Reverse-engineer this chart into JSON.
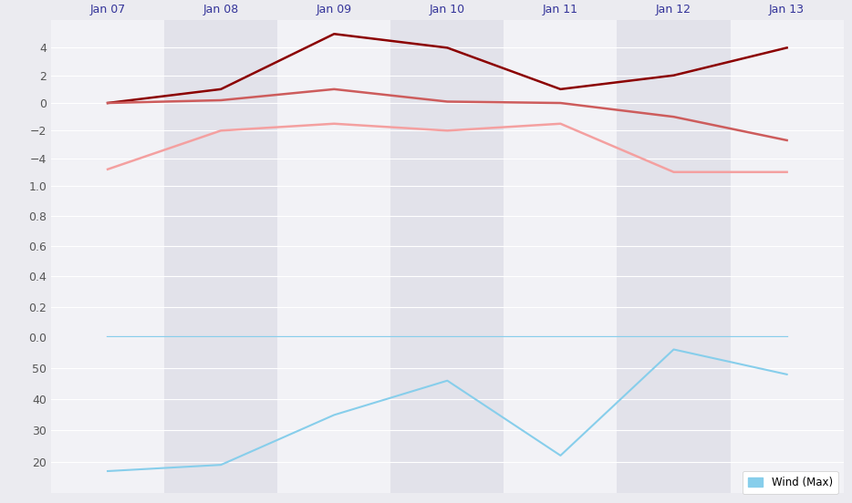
{
  "x_labels": [
    "Jan 07",
    "Jan 08",
    "Jan 09",
    "Jan 10",
    "Jan 11",
    "Jan 12",
    "Jan 13"
  ],
  "x_positions": [
    0,
    1,
    2,
    3,
    4,
    5,
    6
  ],
  "temp_max": [
    0,
    1,
    5,
    4,
    1,
    2,
    4
  ],
  "temp_avg": [
    0,
    0.2,
    1,
    0.1,
    0,
    -1,
    -2.7
  ],
  "temp_min": [
    -4.8,
    -2,
    -1.5,
    -2,
    -1.5,
    -5,
    -5
  ],
  "precip": [
    0,
    0,
    0,
    0,
    0,
    0,
    0
  ],
  "precip_avg": [
    0,
    0,
    0,
    0,
    0,
    0,
    0
  ],
  "wind_max": [
    17,
    19,
    35,
    46,
    22,
    56,
    48
  ],
  "color_temp_max": "#8B0000",
  "color_temp_avg": "#CD5C5C",
  "color_temp_min": "#F4A0A0",
  "color_precip": "#1E90FF",
  "color_precip_avg": "#87CEEB",
  "color_wind_max": "#87CEEB",
  "temp_ylim": [
    -6,
    6
  ],
  "temp_yticks": [
    -4,
    -2,
    0,
    2,
    4
  ],
  "precip_ylim": [
    0,
    1
  ],
  "precip_yticks": [
    0,
    0.2,
    0.4,
    0.6,
    0.8,
    1
  ],
  "wind_ylim": [
    10,
    60
  ],
  "wind_yticks": [
    20,
    30,
    40,
    50
  ],
  "bg_color": "#ebebf0",
  "col_light": "#f2f2f6",
  "col_dark": "#e2e2ea",
  "grid_color": "#ffffff",
  "legend_bg": "#ffffff",
  "legend_fontsize": 8.5,
  "tick_fontsize": 9,
  "tick_color": "#555555",
  "label_color": "#333399"
}
